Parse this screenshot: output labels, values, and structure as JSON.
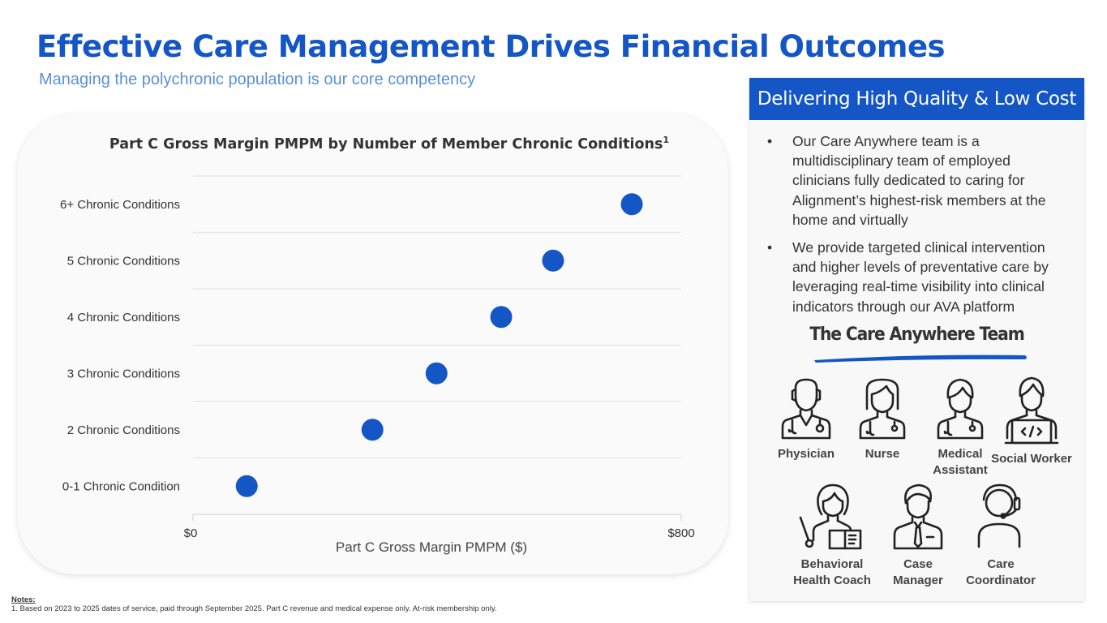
{
  "header": {
    "title": "Effective Care Management Drives Financial Outcomes",
    "subtitle": "Managing the polychronic population is our core competency"
  },
  "colors": {
    "brand_blue": "#1456c6",
    "subtitle_blue": "#5b8fdb",
    "dot_blue": "#1456c6",
    "text_dark": "#333333"
  },
  "chart_data": {
    "type": "scatter",
    "title": "Part C Gross Margin PMPM by Number of Member Chronic Conditions",
    "title_superscript": "1",
    "xlabel": "Part C Gross Margin PMPM ($)",
    "ylabel": "",
    "xlim": [
      0,
      800
    ],
    "x_ticks": [
      "$0",
      "$800"
    ],
    "grid": true,
    "legend": "none",
    "categories": [
      "6+ Chronic Conditions",
      "5 Chronic Conditions",
      "4 Chronic Conditions",
      "3 Chronic Conditions",
      "2 Chronic Conditions",
      "0-1 Chronic Condition"
    ],
    "values": [
      719,
      590,
      505,
      399,
      294,
      88
    ]
  },
  "notes": {
    "heading": "Notes:",
    "items": [
      "1. Based on 2023 to 2025 dates of service, paid through September 2025. Part C revenue and medical expense only. At-risk membership only."
    ]
  },
  "side_panel": {
    "header": "Delivering High Quality & Low Cost",
    "bullets": [
      "Our Care Anywhere team is a multidisciplinary team of employed clinicians fully dedicated to caring for Alignment’s highest-risk members at the home and virtually",
      "We provide targeted clinical intervention and higher levels of preventative care by leveraging real-time visibility into clinical indicators through our AVA platform"
    ],
    "team_title": "The Care Anywhere Team",
    "team": [
      {
        "icon": "physician-icon",
        "label": "Physician"
      },
      {
        "icon": "nurse-icon",
        "label": "Nurse"
      },
      {
        "icon": "medical-assistant-icon",
        "label": "Medical Assistant"
      },
      {
        "icon": "social-worker-icon",
        "label": "Social Worker"
      },
      {
        "icon": "behavioral-health-coach-icon",
        "label": "Behavioral Health Coach"
      },
      {
        "icon": "case-manager-icon",
        "label": "Case Manager"
      },
      {
        "icon": "care-coordinator-icon",
        "label": "Care Coordinator"
      }
    ]
  }
}
